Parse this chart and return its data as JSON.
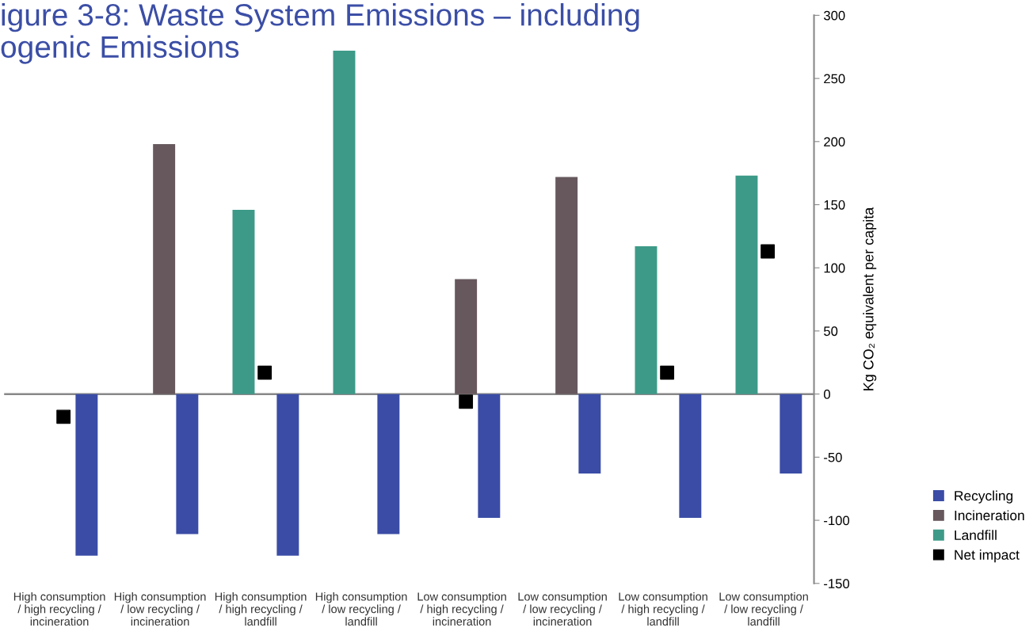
{
  "chart_data": {
    "type": "bar",
    "title": "igure 3-8: Waste System Emissions – including\nogenic Emissions",
    "ylabel": "Kg CO₂ equivalent per capita",
    "categories": [
      "High consumption\n/ high recycling /\nincineration",
      "High consumption\n/ low recycling /\nincineration",
      "High consumption\n/ high recycling /\nlandfill",
      "High consumption\n/ low recycling /\nlandfill",
      "Low consumption\n/ high recycling /\nincineration",
      "Low consumption\n/ low recycling /\nincineration",
      "Low consumption\n/ high recycling /\nlandfill",
      "Low consumption\n/ low recycling /\nlandfill"
    ],
    "series": [
      {
        "name": "Recycling",
        "color": "#3a4ca6",
        "values": [
          -128,
          -111,
          -128,
          -111,
          -98,
          -63,
          -98,
          -63
        ]
      },
      {
        "name": "Incineration",
        "color": "#67585e",
        "values": [
          null,
          198,
          null,
          null,
          91,
          172,
          null,
          null
        ]
      },
      {
        "name": "Landfill",
        "color": "#3d9a88",
        "values": [
          null,
          null,
          146,
          272,
          null,
          null,
          117,
          173
        ]
      },
      {
        "name": "Net impact",
        "type": "scatter",
        "marker": "square",
        "color": "#000000",
        "values": [
          -18,
          null,
          17,
          null,
          -6,
          null,
          17,
          113
        ]
      }
    ],
    "ylim": [
      -150,
      300
    ],
    "yticks": [
      -150,
      -100,
      -50,
      0,
      50,
      100,
      150,
      200,
      250,
      300
    ],
    "ref_lines": [
      {
        "axis": "y",
        "value": 0,
        "color": "#888888",
        "line_style": "solid"
      }
    ],
    "grid": false,
    "legend": "bottom right"
  }
}
